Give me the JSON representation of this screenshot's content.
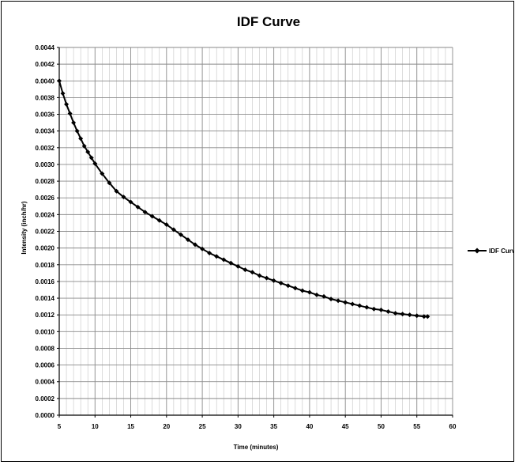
{
  "chart_data": {
    "type": "line",
    "title": "IDF Curve",
    "xlabel": "Time (minutes)",
    "ylabel": "Intensity (inch/hr)",
    "xlim": [
      5,
      60
    ],
    "ylim": [
      0,
      0.0044
    ],
    "x_ticks": [
      5,
      10,
      15,
      20,
      25,
      30,
      35,
      40,
      45,
      50,
      55,
      60
    ],
    "y_ticks": [
      0.0,
      0.0002,
      0.0004,
      0.0006,
      0.0008,
      0.001,
      0.0012,
      0.0014,
      0.0016,
      0.0018,
      0.002,
      0.0022,
      0.0024,
      0.0026,
      0.0028,
      0.003,
      0.0032,
      0.0034,
      0.0036,
      0.0038,
      0.004,
      0.0042,
      0.0044
    ],
    "y_tick_labels": [
      "0.0000",
      "0.0002",
      "0.0004",
      "0.0006",
      "0.0008",
      "0.0010",
      "0.0012",
      "0.0014",
      "0.0016",
      "0.0018",
      "0.0020",
      "0.0022",
      "0.0024",
      "0.0026",
      "0.0028",
      "0.0030",
      "0.0032",
      "0.0034",
      "0.0036",
      "0.0038",
      "0.0040",
      "0.0042",
      "0.0044"
    ],
    "grid": true,
    "legend_position": "right",
    "series": [
      {
        "name": "IDF Curve",
        "color": "#000000",
        "marker": "diamond",
        "x": [
          5,
          5.5,
          6,
          6.5,
          7,
          7.5,
          8,
          8.5,
          9,
          9.5,
          10,
          11,
          12,
          13,
          14,
          15,
          16,
          17,
          18,
          19,
          20,
          21,
          22,
          23,
          24,
          25,
          26,
          27,
          28,
          29,
          30,
          31,
          32,
          33,
          34,
          35,
          36,
          37,
          38,
          39,
          40,
          41,
          42,
          43,
          44,
          45,
          46,
          47,
          48,
          49,
          50,
          51,
          52,
          53,
          54,
          55,
          56,
          56.5
        ],
        "y": [
          0.004,
          0.00385,
          0.00372,
          0.00361,
          0.0035,
          0.0034,
          0.00331,
          0.00322,
          0.00315,
          0.00308,
          0.00301,
          0.00289,
          0.00278,
          0.00268,
          0.00261,
          0.00255,
          0.00249,
          0.00243,
          0.00238,
          0.00233,
          0.00228,
          0.00222,
          0.00216,
          0.0021,
          0.00204,
          0.00199,
          0.00194,
          0.0019,
          0.00186,
          0.00182,
          0.00178,
          0.00174,
          0.00171,
          0.00167,
          0.00164,
          0.00161,
          0.00158,
          0.00155,
          0.00152,
          0.00149,
          0.00147,
          0.00144,
          0.00142,
          0.00139,
          0.00137,
          0.00135,
          0.00133,
          0.00131,
          0.00129,
          0.00127,
          0.00126,
          0.00124,
          0.00122,
          0.00121,
          0.0012,
          0.00119,
          0.00118,
          0.00118
        ]
      }
    ]
  }
}
